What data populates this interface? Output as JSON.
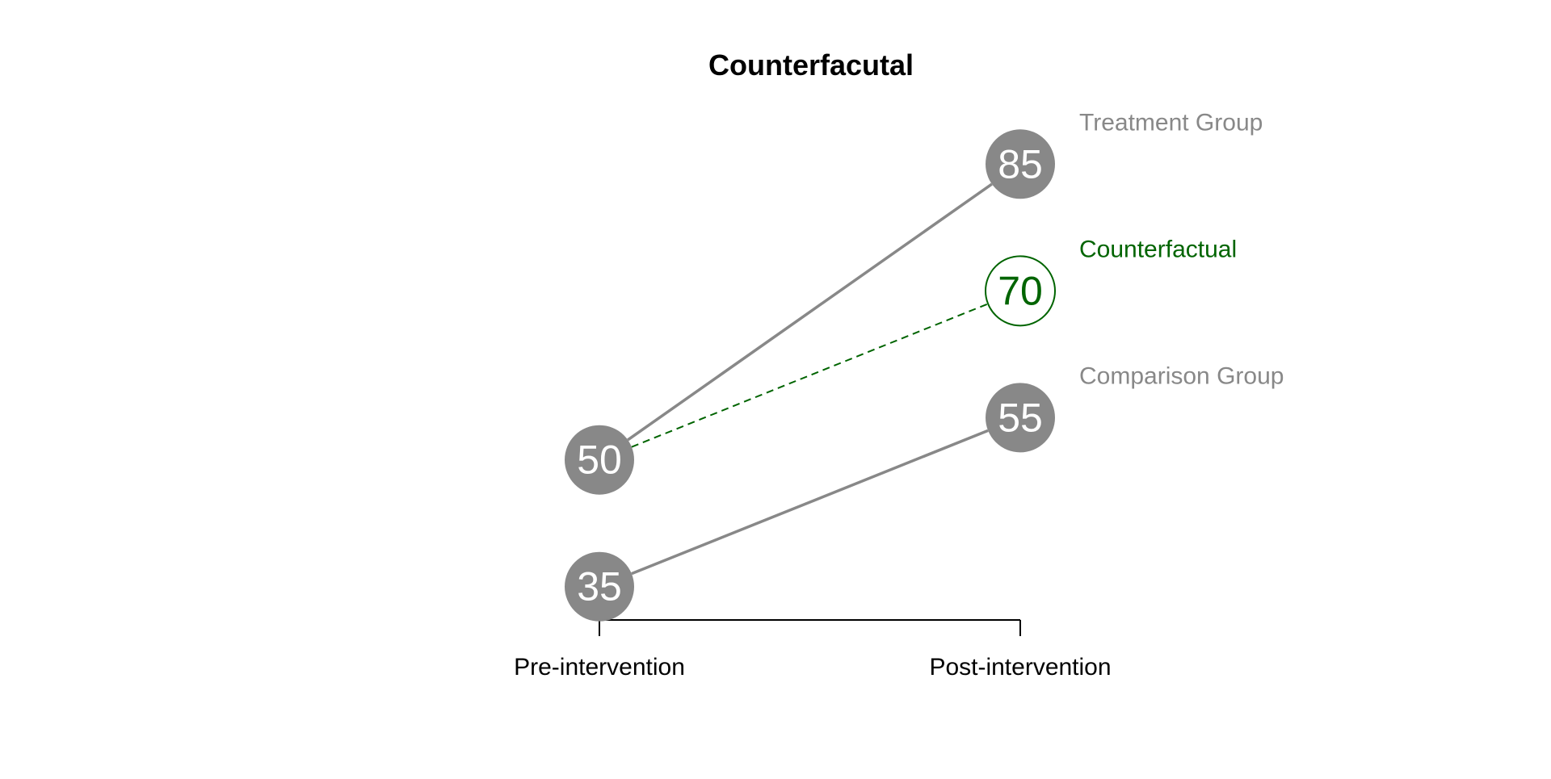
{
  "chart_data": {
    "type": "line",
    "title": "Counterfacutal",
    "categories": [
      "Pre-intervention",
      "Post-intervention"
    ],
    "series": [
      {
        "name": "Treatment Group",
        "values": [
          50,
          85
        ],
        "color": "#888888",
        "style": "solid",
        "marker": "filled"
      },
      {
        "name": "Counterfactual",
        "values": [
          50,
          70
        ],
        "color": "#006400",
        "style": "dashed",
        "marker": "open"
      },
      {
        "name": "Comparison Group",
        "values": [
          35,
          55
        ],
        "color": "#888888",
        "style": "solid",
        "marker": "filled"
      }
    ],
    "value_labels": [
      "50",
      "85",
      "70",
      "35",
      "55"
    ],
    "xlabel": "",
    "ylabel": "",
    "ylim": [
      28,
      92
    ],
    "grid": false,
    "legend": "direct labels at right of series end points",
    "colors": {
      "treatment": "#888888",
      "counterfactual": "#006400",
      "comparison": "#888888",
      "axis": "#000000"
    }
  }
}
